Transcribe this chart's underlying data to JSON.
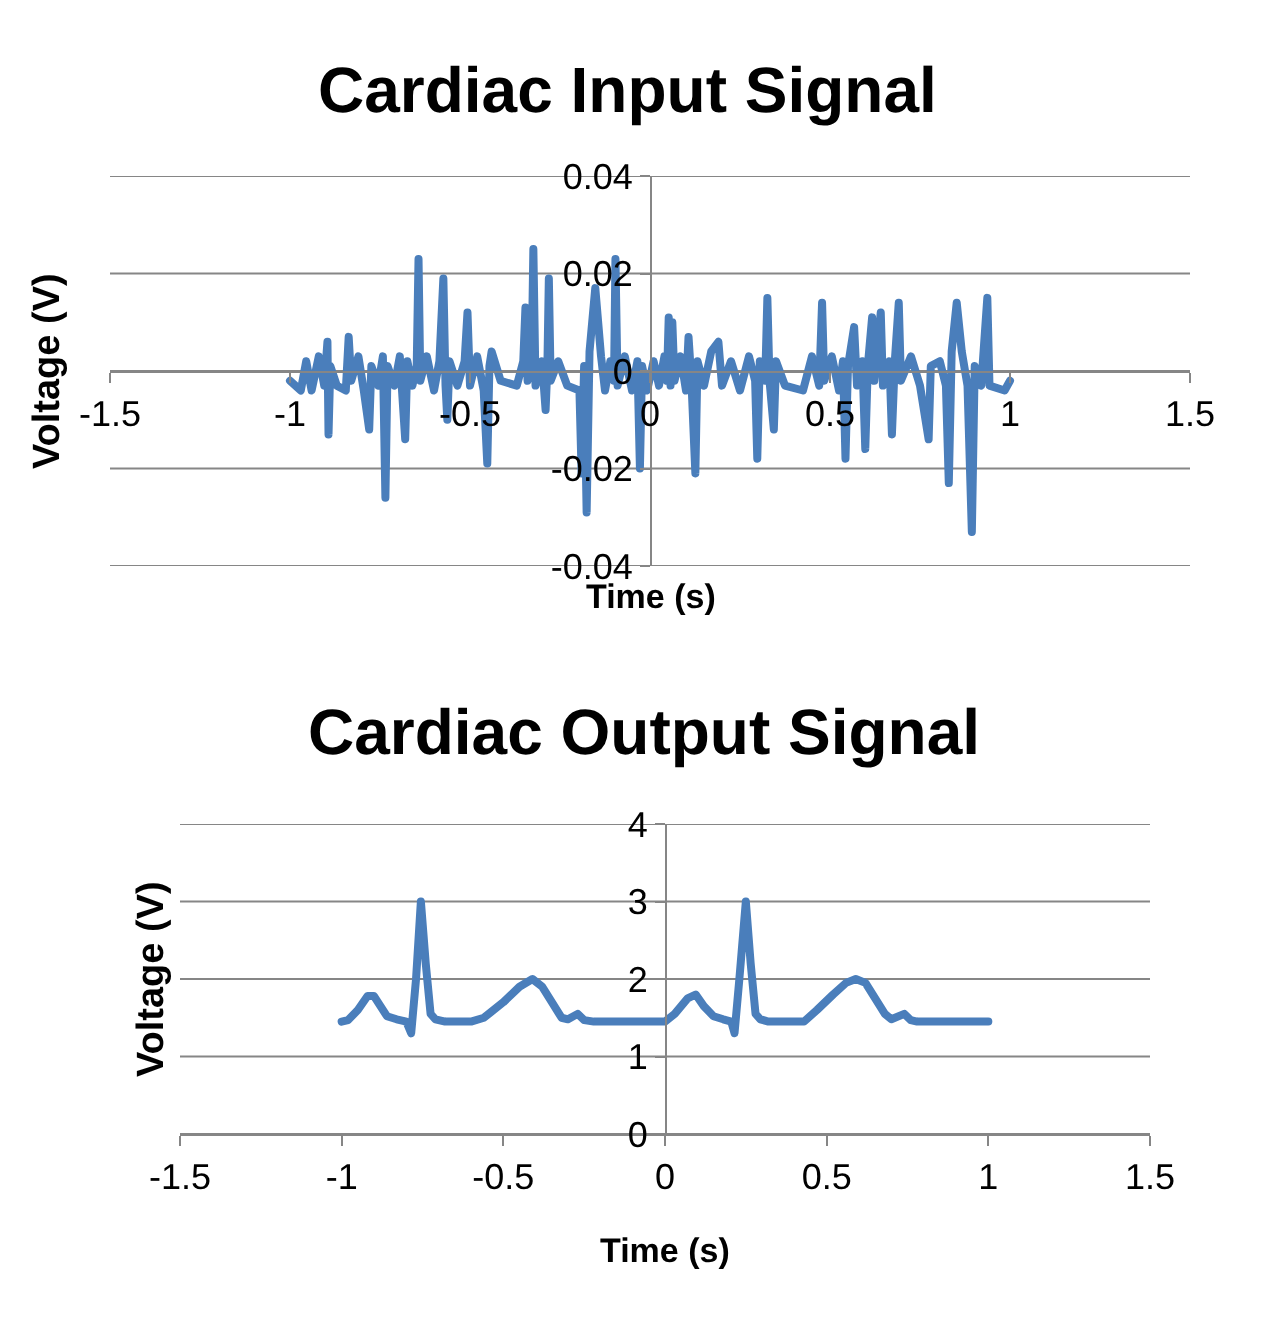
{
  "chart_data": [
    {
      "type": "line",
      "title": "Cardiac Input Signal",
      "xlabel": "Time (s)",
      "ylabel": "Voltage (V)",
      "xlim": [
        -1.5,
        1.5
      ],
      "xticks": [
        -1.5,
        -1,
        -0.5,
        0,
        0.5,
        1,
        1.5
      ],
      "ylim": [
        -0.04,
        0.04
      ],
      "yticks": [
        -0.04,
        -0.02,
        0,
        0.02,
        0.04
      ],
      "grid": "y",
      "line_style": "solid",
      "x": [
        -1.0,
        -0.97,
        -0.955,
        -0.94,
        -0.92,
        -0.905,
        -0.896,
        -0.893,
        -0.888,
        -0.87,
        -0.845,
        -0.837,
        -0.83,
        -0.81,
        -0.795,
        -0.78,
        -0.774,
        -0.755,
        -0.742,
        -0.735,
        -0.729,
        -0.71,
        -0.695,
        -0.68,
        -0.674,
        -0.66,
        -0.648,
        -0.643,
        -0.638,
        -0.62,
        -0.6,
        -0.585,
        -0.574,
        -0.568,
        -0.563,
        -0.557,
        -0.535,
        -0.515,
        -0.507,
        -0.5,
        -0.48,
        -0.462,
        -0.452,
        -0.446,
        -0.44,
        -0.415,
        -0.37,
        -0.352,
        -0.346,
        -0.34,
        -0.329,
        -0.324,
        -0.318,
        -0.3,
        -0.29,
        -0.285,
        -0.281,
        -0.276,
        -0.255,
        -0.23,
        -0.196,
        -0.19,
        -0.183,
        -0.176,
        -0.168,
        -0.152,
        -0.136,
        -0.125,
        -0.11,
        -0.1,
        -0.096,
        -0.09,
        -0.07,
        -0.05,
        -0.035,
        -0.028,
        -0.022,
        -0.008,
        0.01,
        0.025,
        0.04,
        0.047,
        0.052,
        0.057,
        0.062,
        0.068,
        0.085,
        0.1,
        0.107,
        0.115,
        0.126,
        0.132,
        0.15,
        0.17,
        0.19,
        0.2,
        0.225,
        0.25,
        0.275,
        0.292,
        0.298,
        0.305,
        0.32,
        0.326,
        0.332,
        0.344,
        0.35,
        0.375,
        0.425,
        0.45,
        0.47,
        0.478,
        0.484,
        0.505,
        0.525,
        0.536,
        0.543,
        0.55,
        0.567,
        0.575,
        0.59,
        0.598,
        0.605,
        0.617,
        0.623,
        0.641,
        0.647,
        0.665,
        0.672,
        0.68,
        0.691,
        0.697,
        0.725,
        0.75,
        0.774,
        0.78,
        0.805,
        0.822,
        0.83,
        0.838,
        0.852,
        0.866,
        0.882,
        0.894,
        0.902,
        0.92,
        0.937,
        0.943,
        0.985,
        1.0
      ],
      "series": [
        {
          "color": "#4a7ebb",
          "values": [
            -0.002,
            -0.004,
            0.002,
            -0.004,
            0.003,
            -0.003,
            0.006,
            -0.013,
            0.001,
            -0.003,
            -0.004,
            0.007,
            -0.002,
            0.003,
            -0.004,
            -0.012,
            0.001,
            -0.003,
            0.003,
            -0.026,
            0.001,
            -0.003,
            0.003,
            -0.014,
            0.002,
            -0.003,
            0.001,
            0.023,
            -0.002,
            0.003,
            -0.004,
            0.002,
            0.019,
            -0.003,
            -0.01,
            0.002,
            -0.003,
            0.002,
            0.012,
            -0.003,
            0.003,
            -0.004,
            -0.019,
            0.001,
            0.004,
            -0.002,
            -0.003,
            0.002,
            0.013,
            -0.002,
            0.001,
            0.025,
            -0.003,
            0.002,
            -0.008,
            0.001,
            0.019,
            -0.002,
            0.002,
            -0.003,
            -0.004,
            -0.021,
            0.001,
            -0.029,
            0.004,
            0.017,
            0.003,
            -0.004,
            0.002,
            -0.002,
            0.023,
            -0.003,
            0.003,
            -0.004,
            0.002,
            -0.02,
            0.001,
            -0.004,
            0.002,
            -0.003,
            0.003,
            -0.002,
            0.011,
            -0.003,
            0.01,
            -0.002,
            0.003,
            -0.004,
            0.007,
            -0.002,
            -0.021,
            0.002,
            -0.003,
            0.004,
            0.006,
            -0.003,
            0.002,
            -0.004,
            0.003,
            -0.002,
            -0.018,
            0.002,
            -0.002,
            0.015,
            -0.002,
            -0.012,
            0.002,
            -0.003,
            -0.004,
            0.003,
            -0.003,
            0.014,
            -0.002,
            0.003,
            -0.004,
            0.002,
            -0.018,
            0.001,
            0.009,
            -0.003,
            0.002,
            -0.016,
            0.001,
            0.011,
            -0.002,
            0.012,
            -0.003,
            0.002,
            -0.013,
            0.002,
            0.014,
            -0.002,
            0.003,
            -0.003,
            -0.014,
            0.001,
            0.002,
            -0.003,
            -0.023,
            0.004,
            0.014,
            0.004,
            -0.003,
            -0.033,
            0.001,
            -0.003,
            0.015,
            -0.003,
            -0.004,
            -0.002
          ]
        }
      ]
    },
    {
      "type": "line",
      "title": "Cardiac Output Signal",
      "xlabel": "Time (s)",
      "ylabel": "Voltage (V)",
      "xlim": [
        -1.5,
        1.5
      ],
      "xticks": [
        -1.5,
        -1,
        -0.5,
        0,
        0.5,
        1,
        1.5
      ],
      "ylim": [
        0,
        4
      ],
      "yticks": [
        0,
        1,
        2,
        3,
        4
      ],
      "grid": "y",
      "line_style": "solid",
      "x": [
        -1.0,
        -0.98,
        -0.95,
        -0.92,
        -0.9,
        -0.88,
        -0.86,
        -0.83,
        -0.8,
        -0.785,
        -0.77,
        -0.755,
        -0.74,
        -0.725,
        -0.71,
        -0.68,
        -0.6,
        -0.56,
        -0.5,
        -0.45,
        -0.41,
        -0.38,
        -0.35,
        -0.32,
        -0.3,
        -0.27,
        -0.25,
        -0.22,
        0.0,
        0.03,
        0.07,
        0.095,
        0.12,
        0.15,
        0.18,
        0.205,
        0.215,
        0.23,
        0.25,
        0.265,
        0.28,
        0.295,
        0.32,
        0.43,
        0.47,
        0.52,
        0.56,
        0.59,
        0.62,
        0.65,
        0.68,
        0.7,
        0.74,
        0.76,
        0.78,
        1.0
      ],
      "series": [
        {
          "color": "#4a7ebb",
          "values": [
            1.45,
            1.47,
            1.6,
            1.78,
            1.78,
            1.65,
            1.52,
            1.48,
            1.45,
            1.3,
            2.0,
            3.0,
            2.2,
            1.55,
            1.48,
            1.45,
            1.45,
            1.5,
            1.7,
            1.9,
            2.0,
            1.9,
            1.7,
            1.5,
            1.48,
            1.55,
            1.47,
            1.45,
            1.45,
            1.55,
            1.75,
            1.8,
            1.65,
            1.52,
            1.48,
            1.45,
            1.3,
            2.0,
            3.0,
            2.2,
            1.55,
            1.48,
            1.45,
            1.45,
            1.6,
            1.8,
            1.95,
            2.0,
            1.95,
            1.75,
            1.55,
            1.48,
            1.55,
            1.47,
            1.45,
            1.45
          ]
        }
      ]
    }
  ]
}
